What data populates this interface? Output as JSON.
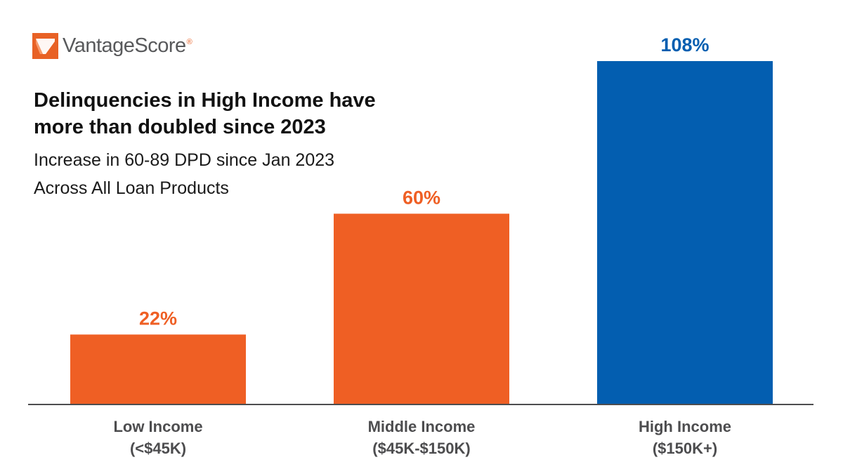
{
  "logo": {
    "text": "VantageScore",
    "reg": "®",
    "colors": {
      "mark": "#e86125",
      "text": "#58595b"
    }
  },
  "header": {
    "title": "Delinquencies in High Income have more than doubled since 2023",
    "subtitle_line1": "Increase in 60-89 DPD since Jan 2023",
    "subtitle_line2": "Across All Loan Products"
  },
  "chart_data": {
    "type": "bar",
    "title": "Delinquencies in High Income have more than doubled since 2023",
    "subtitle": "Increase in 60-89 DPD since Jan 2023 Across All Loan Products",
    "categories": [
      [
        "Low Income",
        "(<$45K)"
      ],
      [
        "Middle Income",
        "($45K-$150K)"
      ],
      [
        "High Income",
        "($150K+)"
      ]
    ],
    "values": [
      22,
      60,
      108
    ],
    "data_labels": [
      "22%",
      "60%",
      "108%"
    ],
    "unit": "%",
    "colors": [
      "#ef5f24",
      "#ef5f24",
      "#035eb0"
    ],
    "ylim": [
      0,
      108
    ],
    "xlabel": "",
    "ylabel": "",
    "grid": false,
    "legend": "none"
  }
}
